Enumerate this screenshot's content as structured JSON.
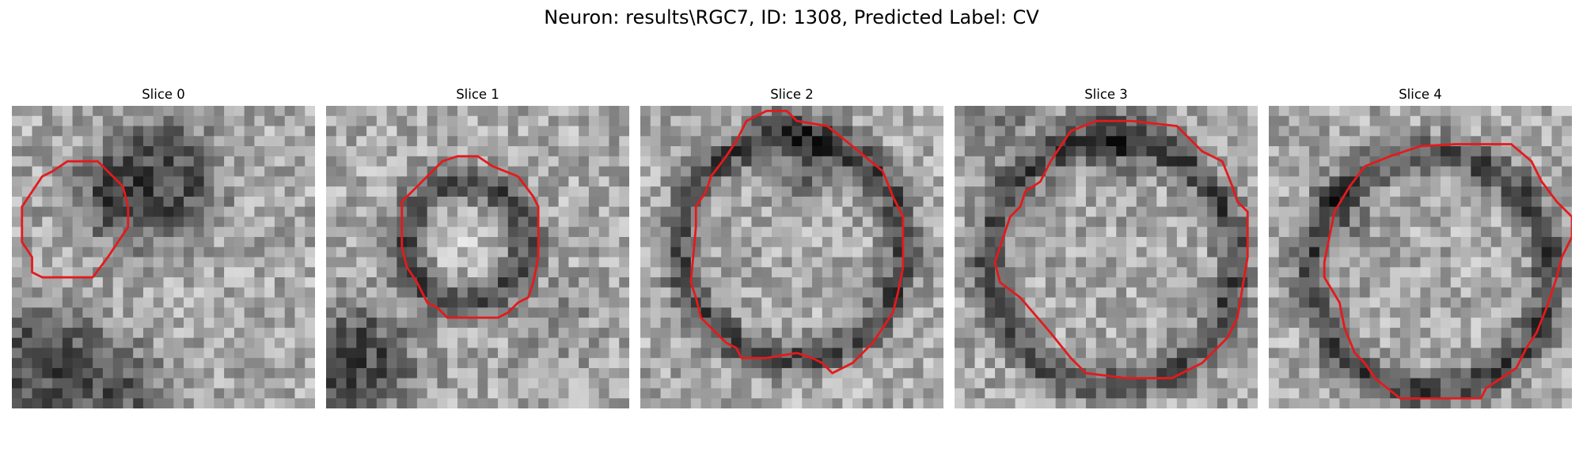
{
  "figure": {
    "title": "Neuron: results\\RGC7, ID: 1308, Predicted Label: CV",
    "grid_size": 30,
    "contour_color": "#e41a1c"
  },
  "panels": [
    {
      "title": "Slice 0",
      "seed": 11,
      "features": [
        {
          "kind": "disk",
          "cx": 14.5,
          "cy": 7.5,
          "r": 5.8,
          "w": 1.2,
          "depth": 95
        },
        {
          "kind": "disk",
          "cx": 8.5,
          "cy": 9.5,
          "r": 3.0,
          "w": 1.4,
          "depth": 55
        },
        {
          "kind": "disk",
          "cx": 3.0,
          "cy": 25.5,
          "r": 5.5,
          "w": 1.4,
          "depth": 95
        },
        {
          "kind": "disk",
          "cx": 11.0,
          "cy": 28.5,
          "r": 4.0,
          "w": 1.5,
          "depth": 75
        }
      ],
      "contour": [
        [
          5.5,
          5.5
        ],
        [
          8.5,
          5.5
        ],
        [
          10,
          7
        ],
        [
          11,
          8
        ],
        [
          11.5,
          10
        ],
        [
          11.5,
          12
        ],
        [
          10.5,
          13.5
        ],
        [
          9.5,
          15
        ],
        [
          8,
          17
        ],
        [
          3,
          17
        ],
        [
          2,
          16.5
        ],
        [
          2,
          15
        ],
        [
          1,
          13.5
        ],
        [
          1,
          10
        ],
        [
          2,
          8.5
        ],
        [
          3,
          7
        ],
        [
          4,
          6.5
        ]
      ]
    },
    {
      "title": "Slice 1",
      "seed": 23,
      "features": [
        {
          "kind": "ring",
          "cx": 13.7,
          "cy": 13.5,
          "r": 5.9,
          "w": 1.8,
          "depth": 95
        },
        {
          "kind": "disk",
          "cx": 13.7,
          "cy": 13.5,
          "r": 3.5,
          "w": 1.5,
          "depth": -25
        },
        {
          "kind": "disk",
          "cx": 3.0,
          "cy": 25.5,
          "r": 5.0,
          "w": 1.5,
          "depth": 105
        },
        {
          "kind": "disk",
          "cx": 22.5,
          "cy": 21.5,
          "r": 3.0,
          "w": 1.5,
          "depth": 35
        }
      ],
      "contour": [
        [
          11.5,
          5.5
        ],
        [
          13,
          5
        ],
        [
          15,
          5
        ],
        [
          16.5,
          6
        ],
        [
          19,
          7
        ],
        [
          20.5,
          9
        ],
        [
          21,
          10
        ],
        [
          21,
          15
        ],
        [
          20.5,
          17.5
        ],
        [
          20,
          19
        ],
        [
          19,
          19.5
        ],
        [
          18,
          20.5
        ],
        [
          17,
          21
        ],
        [
          12,
          21
        ],
        [
          11,
          20
        ],
        [
          10,
          19.5
        ],
        [
          9.5,
          18.5
        ],
        [
          9,
          17.5
        ],
        [
          8,
          16
        ],
        [
          7.5,
          14
        ],
        [
          7.5,
          9.5
        ],
        [
          8.5,
          8.5
        ],
        [
          9.5,
          7.5
        ],
        [
          10.5,
          6.5
        ]
      ]
    },
    {
      "title": "Slice 2",
      "seed": 37,
      "features": [
        {
          "kind": "ring",
          "cx": 15.0,
          "cy": 14.0,
          "r": 11.0,
          "w": 1.8,
          "depth": 95
        },
        {
          "kind": "disk",
          "cx": 15.5,
          "cy": 3.5,
          "r": 3.5,
          "w": 1.5,
          "depth": 55
        },
        {
          "kind": "disk",
          "cx": 17.0,
          "cy": 7.0,
          "r": 1.0,
          "w": 0.8,
          "depth": 60
        }
      ],
      "contour": [
        [
          10.5,
          1.5
        ],
        [
          12.5,
          0.5
        ],
        [
          14.5,
          0.5
        ],
        [
          15.5,
          1.5
        ],
        [
          18.5,
          2
        ],
        [
          21,
          4
        ],
        [
          24,
          6.5
        ],
        [
          25,
          9
        ],
        [
          26,
          11
        ],
        [
          26,
          16
        ],
        [
          25.5,
          18.5
        ],
        [
          25,
          20.5
        ],
        [
          24,
          22
        ],
        [
          23,
          23.5
        ],
        [
          22,
          24.5
        ],
        [
          21,
          25.5
        ],
        [
          19,
          26.5
        ],
        [
          18,
          25.5
        ],
        [
          17,
          25
        ],
        [
          15.5,
          24.5
        ],
        [
          12.5,
          25
        ],
        [
          10,
          25
        ],
        [
          9.5,
          24
        ],
        [
          8.5,
          23.5
        ],
        [
          7.5,
          22.5
        ],
        [
          6,
          21
        ],
        [
          5.5,
          19
        ],
        [
          5,
          17.5
        ],
        [
          5.5,
          12
        ],
        [
          5.5,
          10
        ],
        [
          6.5,
          8.5
        ],
        [
          7,
          7
        ],
        [
          8.5,
          5
        ],
        [
          9.5,
          3.5
        ]
      ]
    },
    {
      "title": "Slice 3",
      "seed": 53,
      "features": [
        {
          "kind": "ring",
          "cx": 15.5,
          "cy": 15.5,
          "r": 12.2,
          "w": 1.8,
          "depth": 95
        },
        {
          "kind": "disk",
          "cx": 4.5,
          "cy": 2.0,
          "r": 3.0,
          "w": 1.4,
          "depth": 45
        },
        {
          "kind": "disk",
          "cx": 16.0,
          "cy": 3.5,
          "r": 3.5,
          "w": 1.4,
          "depth": 55
        }
      ],
      "contour": [
        [
          11.5,
          2.5
        ],
        [
          14,
          1.5
        ],
        [
          17.5,
          1.5
        ],
        [
          22,
          2
        ],
        [
          23.5,
          3.5
        ],
        [
          24.5,
          4.5
        ],
        [
          26.5,
          5.5
        ],
        [
          27.5,
          8
        ],
        [
          28,
          9.5
        ],
        [
          29,
          10.5
        ],
        [
          29,
          15
        ],
        [
          28.5,
          18
        ],
        [
          28,
          21
        ],
        [
          27,
          23
        ],
        [
          25.5,
          24.5
        ],
        [
          24.5,
          25.5
        ],
        [
          23.5,
          26
        ],
        [
          21.5,
          27
        ],
        [
          17,
          27
        ],
        [
          13,
          26.5
        ],
        [
          11.5,
          25
        ],
        [
          9.5,
          22.5
        ],
        [
          6.5,
          19
        ],
        [
          4.5,
          17.5
        ],
        [
          4,
          15.5
        ],
        [
          4.5,
          14
        ],
        [
          5,
          12.5
        ],
        [
          5.5,
          11
        ],
        [
          6.5,
          10
        ],
        [
          7,
          8.5
        ],
        [
          8.5,
          7.5
        ],
        [
          9.5,
          5.5
        ]
      ]
    },
    {
      "title": "Slice 4",
      "seed": 71,
      "features": [
        {
          "kind": "ring",
          "cx": 16.0,
          "cy": 16.5,
          "r": 11.8,
          "w": 1.8,
          "depth": 95
        },
        {
          "kind": "disk",
          "cx": 7.5,
          "cy": 11.0,
          "r": 2.0,
          "w": 1.3,
          "depth": 50
        }
      ],
      "contour": [
        [
          13.5,
          4.5
        ],
        [
          15,
          4
        ],
        [
          18.5,
          3.8
        ],
        [
          22,
          3.8
        ],
        [
          24,
          3.8
        ],
        [
          26,
          5.5
        ],
        [
          27,
          7.5
        ],
        [
          28.5,
          9.5
        ],
        [
          30,
          11
        ],
        [
          30,
          13
        ],
        [
          29,
          15
        ],
        [
          28.5,
          17
        ],
        [
          27.5,
          20
        ],
        [
          26.5,
          22.5
        ],
        [
          25.5,
          24
        ],
        [
          24.5,
          26
        ],
        [
          23,
          27
        ],
        [
          21.5,
          28
        ],
        [
          21,
          29
        ],
        [
          13,
          29
        ],
        [
          10.5,
          27
        ],
        [
          9.5,
          25.5
        ],
        [
          8.5,
          24.5
        ],
        [
          7.5,
          22
        ],
        [
          7,
          19.5
        ],
        [
          5.5,
          17
        ],
        [
          5.5,
          15.5
        ],
        [
          6,
          13
        ],
        [
          6.5,
          10.5
        ],
        [
          8,
          8
        ],
        [
          9.5,
          6
        ],
        [
          12,
          5
        ]
      ]
    }
  ]
}
